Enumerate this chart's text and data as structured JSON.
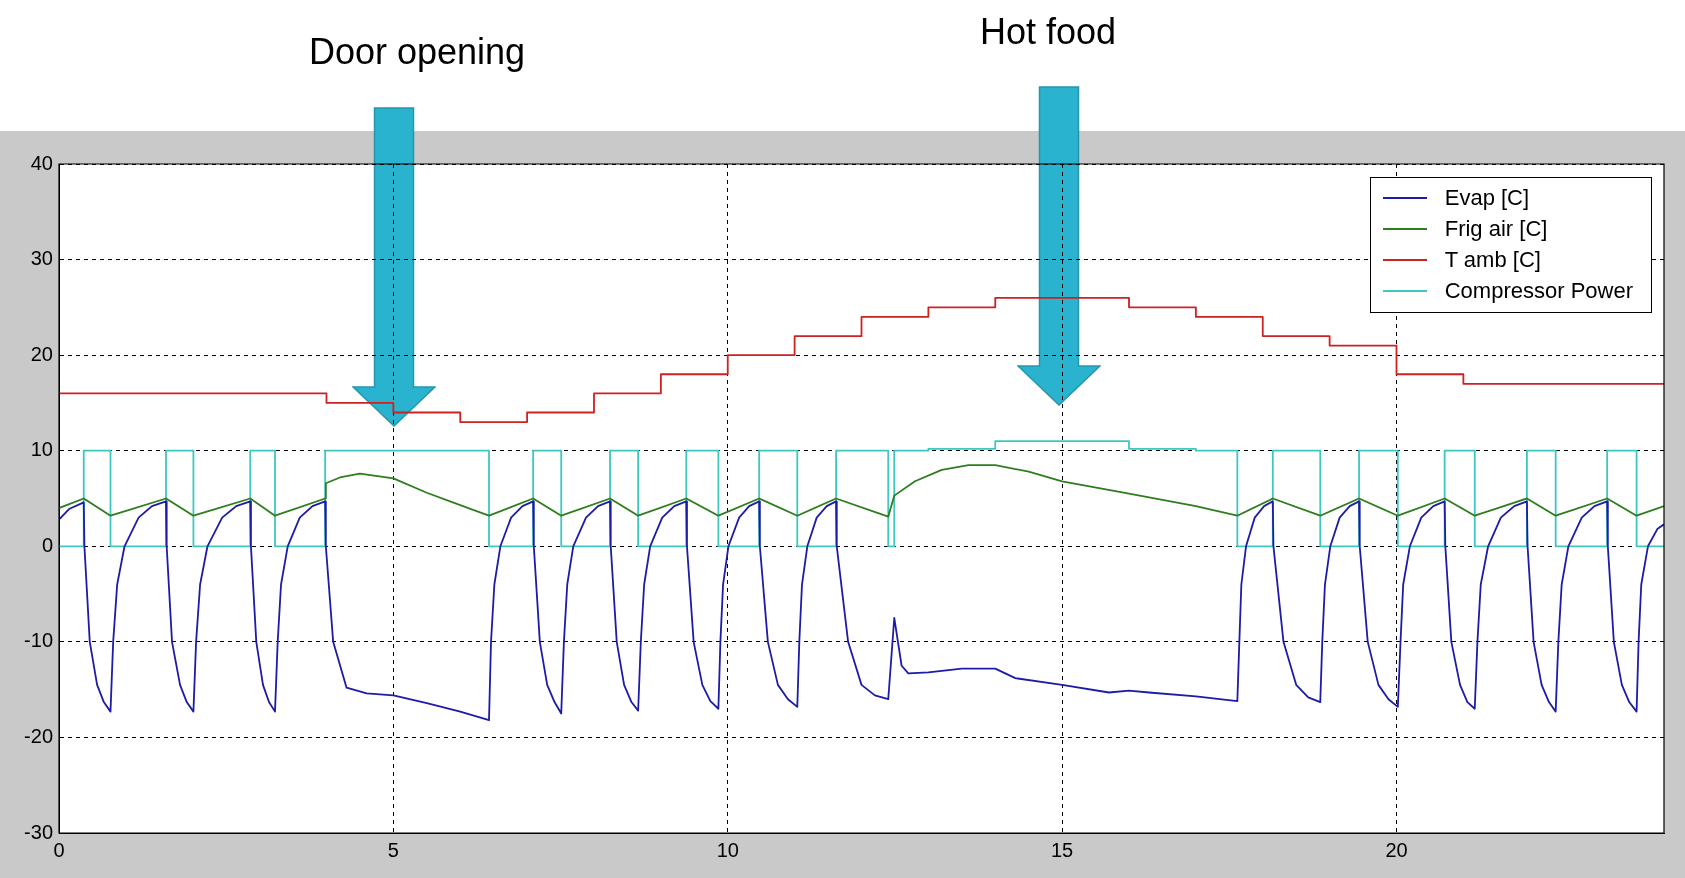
{
  "chart_data": {
    "type": "line",
    "annotations": [
      "Door opening",
      "Hot food"
    ],
    "xlim": [
      0,
      24
    ],
    "xticks": [
      0,
      5,
      10,
      15,
      20
    ],
    "ylim": [
      -30,
      40
    ],
    "yticks": [
      -30,
      -20,
      -10,
      0,
      10,
      20,
      30,
      40
    ],
    "grid": true,
    "legend": "top right",
    "marker": "none",
    "line_style": "solid",
    "series": [
      {
        "name": "Evap [C]",
        "color": "#1c1ca8",
        "type": "line",
        "x": [
          0,
          0.15,
          0.37,
          0.38,
          0.46,
          0.57,
          0.67,
          0.77,
          0.81,
          0.87,
          0.98,
          1.19,
          1.39,
          1.6,
          1.61,
          1.69,
          1.81,
          1.91,
          2.01,
          2.05,
          2.11,
          2.22,
          2.44,
          2.65,
          2.86,
          2.87,
          2.95,
          3.05,
          3.14,
          3.23,
          3.27,
          3.32,
          3.42,
          3.6,
          3.79,
          3.98,
          3.99,
          4.1,
          4.3,
          4.6,
          5.0,
          5.5,
          6.0,
          6.43,
          6.46,
          6.51,
          6.6,
          6.76,
          6.93,
          7.09,
          7.1,
          7.19,
          7.3,
          7.41,
          7.51,
          7.55,
          7.6,
          7.69,
          7.88,
          8.06,
          8.24,
          8.25,
          8.34,
          8.45,
          8.56,
          8.66,
          8.7,
          8.75,
          8.84,
          9.02,
          9.2,
          9.38,
          9.39,
          9.49,
          9.62,
          9.74,
          9.86,
          9.89,
          9.93,
          10.01,
          10.17,
          10.32,
          10.47,
          10.48,
          10.6,
          10.75,
          10.9,
          11.04,
          11.07,
          11.11,
          11.19,
          11.33,
          11.48,
          11.62,
          11.63,
          11.8,
          12.0,
          12.2,
          12.4,
          12.49,
          12.6,
          12.7,
          13.0,
          13.5,
          14.0,
          14.3,
          15.0,
          15.7,
          16.0,
          16.3,
          17.0,
          17.62,
          17.65,
          17.68,
          17.75,
          17.88,
          18.02,
          18.15,
          18.16,
          18.31,
          18.5,
          18.68,
          18.86,
          18.89,
          18.93,
          19.01,
          19.15,
          19.3,
          19.44,
          19.45,
          19.57,
          19.73,
          19.88,
          20.02,
          20.06,
          20.1,
          20.2,
          20.37,
          20.55,
          20.72,
          20.73,
          20.82,
          20.95,
          21.06,
          21.17,
          21.21,
          21.26,
          21.37,
          21.56,
          21.76,
          21.95,
          21.96,
          22.05,
          22.17,
          22.28,
          22.38,
          22.42,
          22.47,
          22.57,
          22.77,
          22.96,
          23.15,
          23.16,
          23.25,
          23.37,
          23.48,
          23.59,
          23.62,
          23.66,
          23.76,
          23.9,
          24
        ],
        "values": [
          2.8,
          3.9,
          4.6,
          0,
          -10,
          -14.5,
          -16.3,
          -17.3,
          -10,
          -4,
          0,
          3,
          4.2,
          4.7,
          0,
          -10,
          -14.5,
          -16.3,
          -17.3,
          -10,
          -4,
          0,
          3,
          4.2,
          4.7,
          0,
          -10,
          -14.5,
          -16.3,
          -17.3,
          -10,
          -4,
          0,
          3,
          4.2,
          4.7,
          0,
          -10,
          -14.8,
          -15.4,
          -15.6,
          -16.4,
          -17.3,
          -18.2,
          -10,
          -4,
          0,
          3,
          4.2,
          4.7,
          0,
          -10,
          -14.5,
          -16.3,
          -17.5,
          -10,
          -4,
          0,
          3,
          4.2,
          4.7,
          0,
          -10,
          -14.5,
          -16.3,
          -17.2,
          -10,
          -4,
          0,
          3,
          4.2,
          4.7,
          0,
          -10,
          -14.5,
          -16.2,
          -17,
          -10,
          -4,
          0,
          3,
          4.2,
          4.7,
          0,
          -10,
          -14.5,
          -16,
          -16.8,
          -10,
          -4,
          0,
          3,
          4.2,
          4.7,
          0,
          -10,
          -14.5,
          -15.6,
          -16,
          -7.5,
          -12.5,
          -13.3,
          -13.2,
          -12.8,
          -12.8,
          -13.8,
          -14.5,
          -15.3,
          -15.1,
          -15.3,
          -15.7,
          -16.2,
          -10,
          -4,
          0,
          3,
          4.2,
          4.7,
          0,
          -10,
          -14.5,
          -15.8,
          -16.3,
          -10,
          -4,
          0,
          3,
          4.2,
          4.7,
          0,
          -10,
          -14.5,
          -16,
          -16.8,
          -10,
          -4,
          0,
          3,
          4.2,
          4.7,
          0,
          -10,
          -14.5,
          -16.3,
          -17,
          -10,
          -4,
          0,
          3,
          4.2,
          4.7,
          0,
          -10,
          -14.5,
          -16.3,
          -17.3,
          -10,
          -4,
          0,
          3,
          4.2,
          4.7,
          0,
          -10,
          -14.5,
          -16.3,
          -17.3,
          -10,
          -4,
          0,
          1.8,
          2.3
        ]
      },
      {
        "name": "Frig air [C]",
        "color": "#2e7d1e",
        "type": "line",
        "x": [
          0,
          0.37,
          0.77,
          1.6,
          2.01,
          2.86,
          3.23,
          3.98,
          3.99,
          4.2,
          4.5,
          5.0,
          5.5,
          6.0,
          6.43,
          7.09,
          7.51,
          8.24,
          8.66,
          9.38,
          9.86,
          10.47,
          11.04,
          11.62,
          12.4,
          12.49,
          12.8,
          13.2,
          13.6,
          14.0,
          14.5,
          15.0,
          16.0,
          17.0,
          17.62,
          18.15,
          18.86,
          19.44,
          20.02,
          20.72,
          21.17,
          21.95,
          22.38,
          23.15,
          23.59,
          24
        ],
        "values": [
          4,
          5,
          3.2,
          5,
          3.2,
          5,
          3.2,
          5,
          6.6,
          7.2,
          7.6,
          7.1,
          5.6,
          4.3,
          3.2,
          5,
          3.2,
          5,
          3.2,
          5,
          3.2,
          5,
          3.2,
          5,
          3.1,
          5.3,
          6.8,
          8,
          8.5,
          8.5,
          7.8,
          6.8,
          5.5,
          4.2,
          3.2,
          5,
          3.2,
          5,
          3.2,
          5,
          3.2,
          5,
          3.2,
          5,
          3.2,
          4.2
        ]
      },
      {
        "name": "T amb [C]",
        "color": "#cc2222",
        "type": "step",
        "x": [
          0,
          4,
          5,
          6,
          7,
          8,
          9,
          10,
          11,
          12,
          13,
          14,
          16,
          17,
          18,
          19,
          20,
          21,
          24
        ],
        "values": [
          16,
          15,
          14,
          13,
          14,
          16,
          18,
          20,
          22,
          24,
          25,
          26,
          25,
          24,
          22,
          21,
          18,
          17,
          17
        ]
      },
      {
        "name": "Compressor Power",
        "color": "#3cc7c0",
        "type": "step",
        "x": [
          0,
          0.37,
          0.77,
          1.6,
          2.01,
          2.86,
          3.23,
          3.98,
          6.43,
          7.09,
          7.51,
          8.24,
          8.66,
          9.38,
          9.86,
          10.47,
          11.04,
          11.62,
          12.4,
          12.49,
          13.0,
          14.0,
          16.0,
          17.0,
          17.62,
          18.15,
          18.86,
          19.44,
          20.02,
          20.72,
          21.17,
          21.95,
          22.38,
          23.15,
          23.59,
          24
        ],
        "values": [
          0,
          10,
          0,
          10,
          0,
          10,
          0,
          10,
          0,
          10,
          0,
          10,
          0,
          10,
          0,
          10,
          0,
          10,
          0,
          10,
          10.2,
          11,
          10.2,
          10,
          0,
          10,
          0,
          10,
          0,
          10,
          0,
          10,
          0,
          10,
          0,
          0
        ]
      }
    ]
  }
}
